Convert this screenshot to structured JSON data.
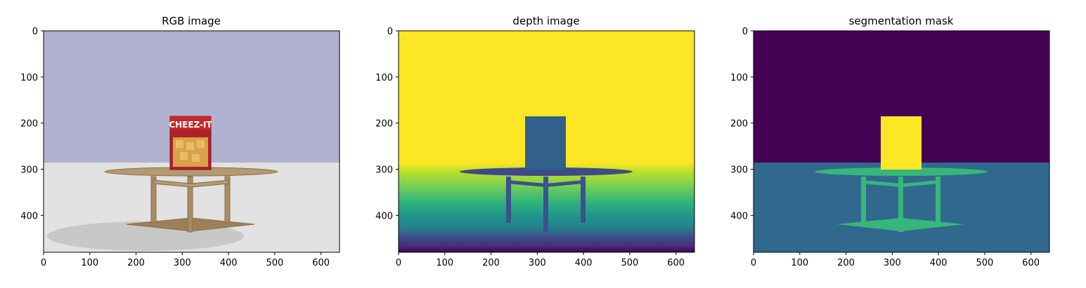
{
  "chart_data": [
    {
      "type": "image",
      "title": "RGB image",
      "xlim": [
        0,
        640
      ],
      "ylim": [
        480,
        0
      ],
      "xticks": [
        0,
        100,
        200,
        300,
        400,
        500,
        600
      ],
      "yticks": [
        0,
        100,
        200,
        300,
        400
      ],
      "xticklabels": [
        "0",
        "100",
        "200",
        "300",
        "400",
        "500",
        "600"
      ],
      "yticklabels": [
        "0",
        "100",
        "200",
        "300",
        "400"
      ],
      "product_label": "CHEEZ-IT",
      "colors": {
        "sky": "#b1b1cf",
        "floor": "#e2e2e2",
        "shadow": "#c8c8c8",
        "table": "#b49a72",
        "box": "#b0202a"
      }
    },
    {
      "type": "image",
      "title": "depth image",
      "xlim": [
        0,
        640
      ],
      "ylim": [
        480,
        0
      ],
      "xticks": [
        0,
        100,
        200,
        300,
        400,
        500,
        600
      ],
      "yticks": [
        0,
        100,
        200,
        300,
        400
      ],
      "xticklabels": [
        "0",
        "100",
        "200",
        "300",
        "400",
        "500",
        "600"
      ],
      "yticklabels": [
        "0",
        "100",
        "200",
        "300",
        "400"
      ],
      "colormap": "viridis"
    },
    {
      "type": "image",
      "title": "segmentation mask",
      "xlim": [
        0,
        640
      ],
      "ylim": [
        480,
        0
      ],
      "xticks": [
        0,
        100,
        200,
        300,
        400,
        500,
        600
      ],
      "yticks": [
        0,
        100,
        200,
        300,
        400
      ],
      "xticklabels": [
        "0",
        "100",
        "200",
        "300",
        "400",
        "500",
        "600"
      ],
      "yticklabels": [
        "0",
        "100",
        "200",
        "300",
        "400"
      ],
      "colors": {
        "background": "#440154",
        "floor": "#31688e",
        "table": "#35b779",
        "box": "#fde725"
      }
    }
  ]
}
